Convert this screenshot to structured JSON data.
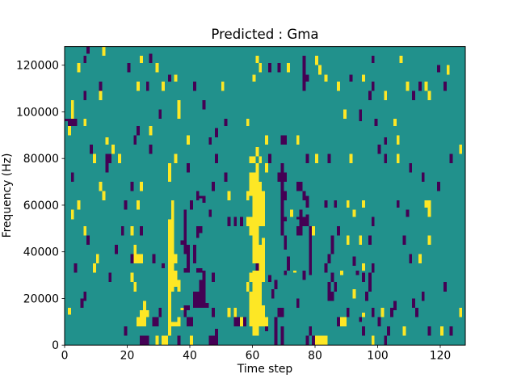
{
  "figure": {
    "title": "Predicted : Gma",
    "xlabel": "Time step",
    "ylabel": "Frequency (Hz)"
  },
  "chart_data": {
    "type": "heatmap",
    "title": "Predicted : Gma",
    "xlabel": "Time step",
    "ylabel": "Frequency (Hz)",
    "x_range": [
      0,
      128
    ],
    "y_range": [
      0,
      128000
    ],
    "x_ticks": [
      0,
      20,
      40,
      60,
      80,
      100,
      120
    ],
    "y_ticks": [
      0,
      20000,
      40000,
      60000,
      80000,
      100000,
      120000
    ],
    "grid_on": false,
    "legend": null,
    "n_cols": 128,
    "n_rows": 128,
    "value_legend": {
      ".": "mid (0.5)",
      "y": "high (1.0)",
      "d": "low (0.0)"
    },
    "colors": {
      "background": "#ffffff",
      "mid": "#21918c",
      "high": "#fde725",
      "low": "#440154",
      "axis": "#000000"
    },
    "colormap": "viridis",
    "rows_top_to_bottom": [
      ".......d....y...................................................................................................................",
      ".......d....y...................................................................................................................",
      ".......d....y...................................................................................................................",
      "............y..............d....................................................................................................",
      "......d.................y..d.................................y..............d...y.................d........y....................",
      "......d.................y..d.................................y..............d...y.................d........y....................",
      "......d.................y..d.................................y..............d...y.................d........y....................",
      "....y...............d........y................................y..d..d..y....d...y...............................................",
      "....y...............d........y................................y..d..d..y....d....y.....................................d..y.....",
      "....y...............d........y................................y..d..d..y....d....y.....................................d..y.....",
      "....y...............d........y................................y..d..d..y....d....y.....................................d..y.....",
      "............................................................................d....y........................................y.....",
      ".................................d.y........................y...............dd.....y.......d...y................................",
      ".................................d.y........................y...............dd.....y.......d...y................................",
      ".................................d.y........................y...............dd.....y.......d...y................................",
      "...........d...........y..d....y.........d........y.........................d..........y..........d..........y...d.y.....d......",
      "...........d...........y..d....y.........d........y.........................d..........y..........d..........y...d.y.....d......",
      "...........d...........y..d....y.........d........y.........................d..........y..........d..........y...d.y.....d......",
      "...........d...........y..d....y.........d........y.........................d..........y..........d..........y...d.y.....d......",
      "......d....y.....................................................................................d....y........d....y...........",
      "......d....y.....................................................................................d....y........d....y...........",
      "......d....y.....................................................................................d....y........d....y...........",
      "......d....y.....................................................................................d....y........d....y...........",
      "..y.................................y.......d...................................................................................",
      "..y.................................y.......d...................................................................................",
      "..y.................................y.......d...................................................................................",
      "..y.................................y.......d...................................................................................",
      "..y...........................d.....y....................................................y....d.................................",
      "..y...........................d.....y....................................................y....d.................................",
      "..y...........................d.....y....................................................y....d.................................",
      "..y...........................d.....y....................................................y....d.................................",
      "dddd..y............................................d......y...................................d....d.....y......................",
      ".ddd..y............................................d......y........................................d.....y......................",
      ".ddd..y............................................d......y........................................d.....y......................",
      ".y.....................d...y....................................................................................................",
      ".y.....................d...y....................d...............................................................................",
      ".y.....................d...y....................d...............................................................................",
      ".y.....................d...y....................d...............................................................................",
      "......................d................y........d...............y....dd...y...............................y.....................",
      ".............y........d................y......d.................y....dd...y...........................d...y.....................",
      ".............y........d................y......d.................y....dd...y...........................d...y.....................",
      ".............y........d................y......d.................y....dd...y...........................d...y.....................",
      "........d......y...........d........................................................................d.........................y.",
      "........d......y...........d.................................y......................................d.........................y.",
      "........d......y...........d.................................y......................................d.........................y.",
      "........d......y...........d.................................y......................................d.........................y.",
      ".........y...dd..y.................y............d............y...d...........d..y...d......y..........d...y................d....",
      ".........y...dd..y.................y............d..........yy.y..d...........d..y...d......y..........d...y................d....",
      ".........y...dd..y.................y............d..........yy.y..d...........d..y...d......y..........d...y................d....",
      ".........y...dd..y.................y............d..........yy.y..d...........d..y...d......y..........d...y................d....",
      ".............d...................y.....d.....................y..y....d........................................d.................",
      ".............d...................y.....d.....................y..y....d........................................d.................",
      ".............d...................y.....d.....................y..y....d........................................d.................",
      ".............d...................y.....d.....................y..y....d........................................d.................",
      "..d..............................y.................d.......yyy......ddd...........................................d.............",
      "..d..............................y.................d.......yyy......ddd...........................................d.............",
      "..d..............................y.................d.......yyy......ddd...........................................d.............",
      "..d..............................y.................d.......yyy......ddd...........................................d.............",
      "...........y.........d..y......................d...........yyyy......d....dd...........................................d........",
      "...........y.........d..y......................d...........yyyy......d....dd...........................................d........",
      "...........y.........d..y......................d...........yyyy......d....dd...........................................d........",
      "...........y.........d..y......................d...........yyyy......d....dd...........................................d........",
      "............y.............................d.........y.....yyyyyy.....dd.....d...................................................",
      "............y.............................d.........y.....yyyyyy.....dd.....d...................................................",
      "............y.............................ddd.......y.....y.yyyy.....dd.....dd..................................................",
      "............y.............................d.d.......y.....y.yyyy.....dd.....dd..................................................",
      "....y..............d...y..........y.....d...d...............yyyy.....d.......d.....d..d...y....y..........d........yy...........",
      "....y..............d...y..........y.....d...................yyyy.....d.......d.....d..d...y....y..........d........yy...........",
      "....y..............d...y..........y.....d...................yyyy.....d.......d.....d..d...y....y..........d........yy...........",
      "....y..............d...y..........y.....d...................yyyy.....d..............................................y...........",
      "..y...............................y...d.......d.............yyyy.....d..y..d................y................d......y...........",
      "..y...............................y...d.......d.............yyyy.....d..y..d................y................d......y...........",
      "..y...............................y...d.......d.............yyyy.....d..y..d.d..............y................d......y...........",
      "..y...............................y...d.............d.d.d.yyyyyy.....dd...dddd....................d.............................",
      ".................................yy...d.............d.d.d.yyyyyy.....dd....ddd....................d.............................",
      ".................................yy...d.............d.d.d.yyyyyy.....d.....ddd....................d.............................",
      ".................................yy...d.............d.d.d.yyyyyy.....d.....ddd....................d.............................",
      "......y...........d..y..d........yy...d...dd...............yyy.......d....dd..dy.......d........................................",
      "......y...........d..y..d........yy...d...dd...............yyy.......d....dd..dy.......d........................................",
      "......y...........d..y..d........yy...d...dd...............yyy.......d....dd..dy.......d........................................",
      "......y...........d..y..d........yy...d...d................yyy.......d....dd..dy.......d........................................",
      ".......d.........................yy...d...d.................yy........d.......d......d....y...y..d..........d.......y...........",
      ".......d.........................yy...d.....................yy.y......d.......d......d....y...y..d..........d.......y...........",
      ".......d.........................yy..dd.....................yy.y......d.......d......d....y...y..d..........d.......y...........",
      ".......d.........................yy..dd.....................yy.y......d.......d......d....y...y..d..........d.......y...........",
      "................d.....y..........yy...dd.d..................yyyy......d.......d......d..........................................",
      "................d.....y..........yy...dd.d..................yyyy......d.......d......d..........................................",
      "................d.....y..........yy...dd.d..................yyyy..............d......d..........................................",
      "................d.....y..........yy...dd.d..................yyyy..............d......d..........................................",
      "..........y..........dyyy...d....yyy...d.d..................yyyy..............d.....d.........................d..y..............",
      "..........y..........dyyy...d....yyy...d.d..................yyyy.......d......d.....d.......d.................d..y..............",
      "..........y..........dyyy...d....yyy...d.d..................yyyy.......d......d.....d.......d.................d..y..............",
      "..........y..........dyyy...d....yyy...d.d..................yyyy.......d......d.....d.......d.................d..y..............",
      "...d.....y.....................d.yy....d.....................dyy.......d......d....d........d..y..d.............................",
      "...d.....y.....................d.yy....d.....................dyy.......d......d....d...........y..d.............................",
      "...d.....y.......................yy...dd..dd.................dyy.......d......d....d...........y..d.............................",
      "...d.....y.......................yyy..dd..ddd...............yyyy......d..y..d.d....d....y....d....d.............................",
      "..............d......y...........yyy........d..d...........yyyyy......d.....d.d......d..y....d.d.d..............................",
      "..............d......y...........yyy........d..d...........yyyyy.d..........d........d.........d.d..............................",
      "..............d......y...........yyy........d..d...........yyyyy.d..........d........d.........d.d..............................",
      "..............d......y...........yyyy......dd..d...........yyyyy.d.d.................d.........d.d..............................",
      "......................y..........yyyy......dd.............y.yyy....d................d.d..........d.......................d......",
      "......................y..........yyyy......dd.............y.yyy....d................d.d..........d.......................d......",
      "......................y..........yy.y......dd.............y.yyy....d................d.d..........d.......................d......",
      "......................y..........yy.y......dd.............y.yyy...d.................d.d.....y....d.......................d......",
      "......d..........................y.......dddd..............yyyy...d.................dd......y...d.................d.............",
      "......d..........................y.......dddd..............yyyy...d.................dd......y...d.................d.............",
      "......d..........................y.......dddd..............yyyy...d.................dd......y...d.................d.............",
      ".....dd..........................y.......dddd..............yyyy...........d.........dd..........d..............d..d.............",
      ".....d...................y.......y.......dddd..............yyyy...........d..............................d.....d................",
      ".....d...................y.......y.......ddddd.............yyyy...........d..............................d.....d................",
      ".....d...................y.......y....dd.ddddd.............yyyyy..........d..............................d.....d................",
      ".y.......................y....d..y...ydd.......d....y.y....yyyyy....dd....................d.......d..y..dd......d.............y.",
      ".y......................yyy...d..y....d........d....y.y....yyyyy....dd....................d.......d..y..d.......d.............y.",
      ".y......................yyy...d..y....d........d....y.y....yyyyy....dd....................d....y..d..y..d.......d.............y.",
      "........................yyy...d..y....d........d....y.y....yyyyy....dd....................d....y..d..y..d.......d.............y.",
      ".......................yyy..dd...y..y..dd.............ddyd.yyyyyy..d...................dyy....d.....d...........................",
      ".......................yyy..dd...y..y..dd.............ddyd.yyyyyy..d...................dyy....d.....d...........................",
      ".......................yyy..dd...yyyy..dd.............ddyd.yyyyyy..d...................dyy..........d...........................",
      ".......................yyy..dd...yyyy..dd.............ddyd.yyyyyy..d...................dyy..........d...........................",
      "...................d.............y..........................yy..d..d.d........d................d.......d....y.......d...y..d....",
      "...................d.............y..............d...........yy..d..d.d........d................d.......d....y.......d...y..d....",
      "...................d.............y..............d...........yy.....d.d........d................d.......d....y.......d...y..d....",
      "...................d.............y..............d...........yy.....d.d........d................d.......d....y.......d...y..d....",
      "........................ddd..y.yy...d...y.....ddd..................d.d.......d.dyyyy..............y...d.........................",
      "........................ddd..y.yy...d...y.....ddd..................d.d.......d.dyyyy..............y...d.........................",
      "........................ddd..y.yy...d...y.....ddd..................d.d.......d.dyyyy..............y...d.........................",
      "........................ddd..y.yy...d...y.....ddd..................d.d.......d.dyyyy..............y...d........................."
    ]
  }
}
